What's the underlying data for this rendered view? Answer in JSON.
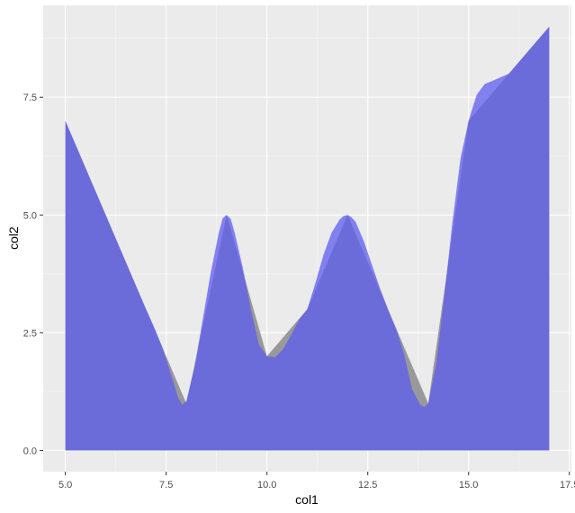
{
  "chart_data": {
    "type": "area",
    "title": "",
    "xlabel": "col1",
    "ylabel": "col2",
    "xlim": [
      4.45,
      17.55
    ],
    "ylim": [
      -0.45,
      9.45
    ],
    "x_ticks": [
      5.0,
      7.5,
      10.0,
      12.5,
      15.0,
      17.5
    ],
    "x_tick_labels": [
      "5.0",
      "7.5",
      "10.0",
      "12.5",
      "15.0",
      "17.5"
    ],
    "y_ticks": [
      0.0,
      2.5,
      5.0,
      7.5
    ],
    "y_tick_labels": [
      "0.0",
      "2.5",
      "5.0",
      "7.5"
    ],
    "grid": true,
    "legend": "none",
    "series": [
      {
        "color": "#999999",
        "x": [
          5,
          6,
          7,
          8,
          9,
          10,
          11,
          12,
          13,
          14,
          15,
          16,
          17
        ],
        "y": [
          7,
          5,
          3,
          1,
          5,
          2,
          3,
          5,
          3,
          1,
          7,
          8,
          9
        ]
      },
      {
        "color": "#5c5cf0",
        "x": [
          5,
          6,
          7,
          7.2,
          7.4,
          7.6,
          7.8,
          7.9,
          8.0,
          8.2,
          8.4,
          8.6,
          8.8,
          8.9,
          9.0,
          9.1,
          9.2,
          9.4,
          9.6,
          9.8,
          10.0,
          10.2,
          10.4,
          10.6,
          10.8,
          11.0,
          11.2,
          11.4,
          11.6,
          11.8,
          11.9,
          12.0,
          12.1,
          12.2,
          12.4,
          12.6,
          12.8,
          13.0,
          13.2,
          13.4,
          13.6,
          13.8,
          13.9,
          14.0,
          14.2,
          14.4,
          14.6,
          14.8,
          15.0,
          15.2,
          15.4,
          15.6,
          16.0,
          17.0
        ],
        "y": [
          7,
          5,
          3,
          2.62,
          2.2,
          1.67,
          1.12,
          0.97,
          1.05,
          1.75,
          2.75,
          3.75,
          4.6,
          4.93,
          5.0,
          4.92,
          4.62,
          3.88,
          3.0,
          2.25,
          2.0,
          1.98,
          2.15,
          2.45,
          2.78,
          3.0,
          3.55,
          4.15,
          4.62,
          4.9,
          4.98,
          5.0,
          4.95,
          4.85,
          4.45,
          3.95,
          3.45,
          3.0,
          2.58,
          2.05,
          1.3,
          0.97,
          0.92,
          1.0,
          1.85,
          3.3,
          4.85,
          6.2,
          7.0,
          7.55,
          7.78,
          7.85,
          8.0,
          9.0
        ]
      }
    ]
  }
}
